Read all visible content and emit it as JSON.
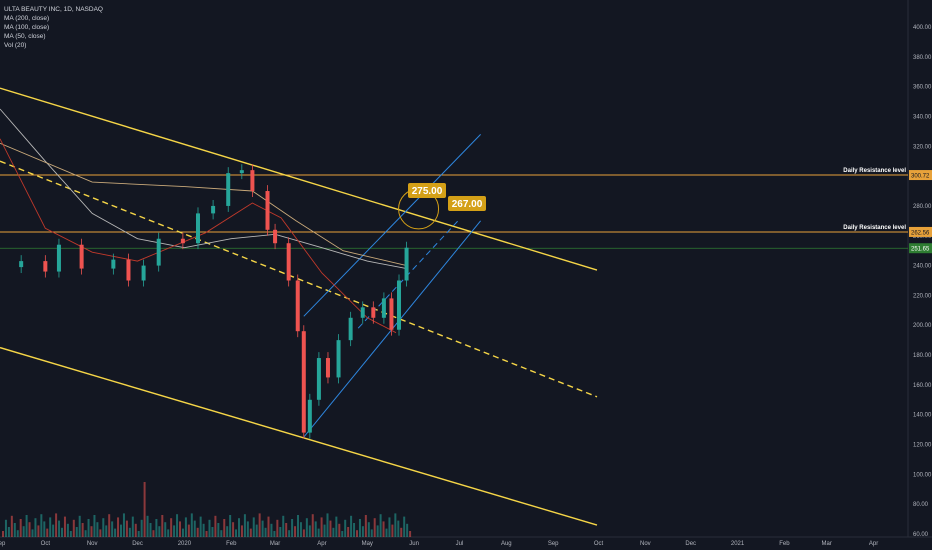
{
  "legend": {
    "symbol": "ULTA BEAUTY INC, 1D, NASDAQ",
    "indicators": [
      "MA (200, close)",
      "MA (100, close)",
      "MA (50, close)",
      "Vol (20)"
    ]
  },
  "colors": {
    "background": "#131722",
    "axis_text": "#b2b5be",
    "grid": "#1e222d",
    "channel_yellow": "#f5d547",
    "resistance": "#e8a23a",
    "up_candle": "#26a69a",
    "down_candle": "#ef5350",
    "ma200": "#b7b7b7",
    "ma100": "#c9a97a",
    "ma50": "#c0392b",
    "blue_channel": "#2e86de",
    "current_price_line": "#2e7d32",
    "target_label": "#d4a017"
  },
  "annotations": {
    "resistance_1_label": "Daily Resistance level",
    "resistance_1_price": "300.72",
    "resistance_2_label": "Daily Resistance level",
    "resistance_2_price": "262.56",
    "target_1": "275.00",
    "target_2": "267.00",
    "current_price": "251.65"
  },
  "chart_data": {
    "type": "candlestick",
    "title": "",
    "x_ticks": [
      "Sep",
      "Oct",
      "Nov",
      "Dec",
      "2020",
      "Feb",
      "Mar",
      "Apr",
      "May",
      "Jun",
      "Jul",
      "Aug",
      "Sep",
      "Oct",
      "Nov",
      "Dec",
      "2021",
      "Feb",
      "Mar",
      "Apr"
    ],
    "y_ticks": [
      "400.00",
      "380.00",
      "360.00",
      "340.00",
      "320.00",
      "300.00",
      "280.00",
      "260.00",
      "240.00",
      "220.00",
      "200.00",
      "180.00",
      "160.00",
      "140.00",
      "120.00",
      "100.00",
      "80.00",
      "60.00"
    ],
    "ylim": [
      55,
      410
    ],
    "price_series": [
      {
        "date": "2019-09-15",
        "close": 243
      },
      {
        "date": "2019-10-01",
        "close": 236
      },
      {
        "date": "2019-10-10",
        "close": 254
      },
      {
        "date": "2019-10-25",
        "close": 238
      },
      {
        "date": "2019-11-15",
        "close": 244
      },
      {
        "date": "2019-11-25",
        "close": 230
      },
      {
        "date": "2019-12-05",
        "close": 240
      },
      {
        "date": "2019-12-15",
        "close": 258
      },
      {
        "date": "2019-12-31",
        "close": 255
      },
      {
        "date": "2020-01-10",
        "close": 275
      },
      {
        "date": "2020-01-20",
        "close": 280
      },
      {
        "date": "2020-01-30",
        "close": 302
      },
      {
        "date": "2020-02-08",
        "close": 304
      },
      {
        "date": "2020-02-15",
        "close": 290
      },
      {
        "date": "2020-02-25",
        "close": 264
      },
      {
        "date": "2020-03-01",
        "close": 255
      },
      {
        "date": "2020-03-10",
        "close": 230
      },
      {
        "date": "2020-03-16",
        "close": 196
      },
      {
        "date": "2020-03-20",
        "close": 128
      },
      {
        "date": "2020-03-24",
        "close": 150
      },
      {
        "date": "2020-03-30",
        "close": 178
      },
      {
        "date": "2020-04-05",
        "close": 165
      },
      {
        "date": "2020-04-12",
        "close": 190
      },
      {
        "date": "2020-04-20",
        "close": 205
      },
      {
        "date": "2020-04-28",
        "close": 212
      },
      {
        "date": "2020-05-05",
        "close": 205
      },
      {
        "date": "2020-05-12",
        "close": 218
      },
      {
        "date": "2020-05-17",
        "close": 197
      },
      {
        "date": "2020-05-22",
        "close": 230
      },
      {
        "date": "2020-05-27",
        "close": 252
      }
    ],
    "moving_averages": [
      {
        "name": "MA (200, close)",
        "points": [
          {
            "date": "2019-09-01",
            "value": 345
          },
          {
            "date": "2019-10-01",
            "value": 310
          },
          {
            "date": "2019-11-01",
            "value": 275
          },
          {
            "date": "2019-12-01",
            "value": 258
          },
          {
            "date": "2020-01-01",
            "value": 252
          },
          {
            "date": "2020-02-01",
            "value": 258
          },
          {
            "date": "2020-03-01",
            "value": 261
          },
          {
            "date": "2020-04-01",
            "value": 252
          },
          {
            "date": "2020-05-01",
            "value": 243
          },
          {
            "date": "2020-05-27",
            "value": 238
          }
        ]
      },
      {
        "name": "MA (100, close)",
        "points": [
          {
            "date": "2019-09-01",
            "value": 322
          },
          {
            "date": "2019-11-01",
            "value": 296
          },
          {
            "date": "2020-01-01",
            "value": 293
          },
          {
            "date": "2020-02-15",
            "value": 290
          },
          {
            "date": "2020-03-15",
            "value": 270
          },
          {
            "date": "2020-04-15",
            "value": 250
          },
          {
            "date": "2020-05-27",
            "value": 240
          }
        ]
      },
      {
        "name": "MA (50, close)",
        "points": [
          {
            "date": "2019-09-01",
            "value": 325
          },
          {
            "date": "2019-10-01",
            "value": 265
          },
          {
            "date": "2019-11-01",
            "value": 249
          },
          {
            "date": "2019-12-01",
            "value": 243
          },
          {
            "date": "2020-01-15",
            "value": 262
          },
          {
            "date": "2020-02-15",
            "value": 282
          },
          {
            "date": "2020-03-05",
            "value": 272
          },
          {
            "date": "2020-04-01",
            "value": 235
          },
          {
            "date": "2020-05-01",
            "value": 205
          },
          {
            "date": "2020-05-20",
            "value": 195
          }
        ]
      }
    ],
    "trend_lines": [
      {
        "name": "upper-channel",
        "style": "solid",
        "start": {
          "date": "2019-09-01",
          "value": 359
        },
        "end": {
          "date": "2020-09-30",
          "value": 237
        }
      },
      {
        "name": "middle-channel",
        "style": "dashed",
        "start": {
          "date": "2019-09-01",
          "value": 310
        },
        "end": {
          "date": "2020-09-30",
          "value": 152
        }
      },
      {
        "name": "lower-channel",
        "style": "solid",
        "start": {
          "date": "2019-09-01",
          "value": 185
        },
        "end": {
          "date": "2020-09-30",
          "value": 66
        }
      },
      {
        "name": "blue-channel-lower",
        "style": "solid",
        "start": {
          "date": "2020-03-20",
          "value": 125
        },
        "end": {
          "date": "2020-07-15",
          "value": 270
        }
      },
      {
        "name": "blue-channel-upper",
        "style": "solid",
        "start": {
          "date": "2020-03-20",
          "value": 206
        },
        "end": {
          "date": "2020-07-15",
          "value": 328
        }
      },
      {
        "name": "blue-channel-middle",
        "style": "dashed",
        "start": {
          "date": "2020-04-25",
          "value": 198
        },
        "end": {
          "date": "2020-06-30",
          "value": 270
        }
      }
    ],
    "horizontal_levels": [
      {
        "name": "resistance-1",
        "value": 300.72
      },
      {
        "name": "resistance-2",
        "value": 262.56
      },
      {
        "name": "current-price",
        "value": 251.65
      }
    ]
  }
}
